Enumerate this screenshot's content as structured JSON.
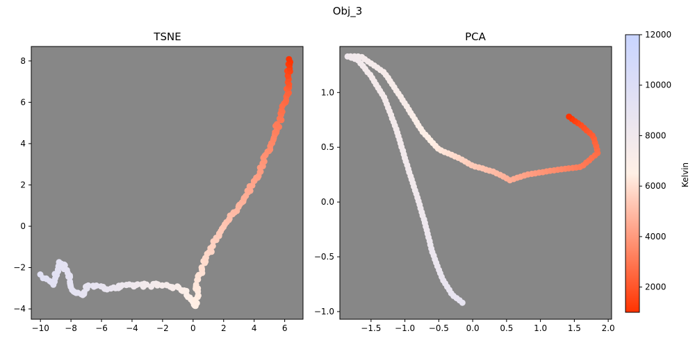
{
  "figure_title": "Obj_3",
  "colormap": {
    "low": "#ff3300",
    "mid": "#fff0e6",
    "high": "#c8d4ff",
    "min": 1000,
    "max": 12000
  },
  "colorbar": {
    "label": "Kelvin",
    "ticks": [
      2000,
      4000,
      6000,
      8000,
      10000,
      12000
    ]
  },
  "chart_data": [
    {
      "type": "scatter",
      "title": "TSNE",
      "xlabel": "",
      "ylabel": "",
      "xlim": [
        -10.6,
        7.2
      ],
      "ylim": [
        -4.5,
        8.7
      ],
      "xticks": [
        -10,
        -8,
        -6,
        -4,
        -2,
        0,
        2,
        4,
        6
      ],
      "yticks": [
        -4,
        -2,
        0,
        2,
        4,
        6,
        8
      ],
      "background": "#878787",
      "line_color": "#4a4a4a",
      "anchors": [
        {
          "x": -9.9,
          "y": -2.4,
          "t": 9500
        },
        {
          "x": -9.2,
          "y": -2.8,
          "t": 9400
        },
        {
          "x": -8.7,
          "y": -1.7,
          "t": 9300
        },
        {
          "x": -8.2,
          "y": -2.2,
          "t": 9200
        },
        {
          "x": -7.9,
          "y": -3.2,
          "t": 9100
        },
        {
          "x": -7.2,
          "y": -3.3,
          "t": 9000
        },
        {
          "x": -6.8,
          "y": -2.8,
          "t": 8900
        },
        {
          "x": -6.0,
          "y": -3.0,
          "t": 8800
        },
        {
          "x": -5.0,
          "y": -2.95,
          "t": 8500
        },
        {
          "x": -3.5,
          "y": -2.85,
          "t": 8000
        },
        {
          "x": -1.8,
          "y": -2.85,
          "t": 7500
        },
        {
          "x": -0.6,
          "y": -3.1,
          "t": 7000
        },
        {
          "x": 0.0,
          "y": -3.7,
          "t": 6700
        },
        {
          "x": 0.2,
          "y": -3.9,
          "t": 6500
        },
        {
          "x": 0.3,
          "y": -2.6,
          "t": 6200
        },
        {
          "x": 1.0,
          "y": -1.3,
          "t": 5800
        },
        {
          "x": 2.0,
          "y": 0.0,
          "t": 5300
        },
        {
          "x": 3.0,
          "y": 1.0,
          "t": 4800
        },
        {
          "x": 4.2,
          "y": 2.4,
          "t": 4200
        },
        {
          "x": 4.7,
          "y": 3.3,
          "t": 3800
        },
        {
          "x": 5.7,
          "y": 5.2,
          "t": 3000
        },
        {
          "x": 6.2,
          "y": 6.5,
          "t": 2400
        },
        {
          "x": 6.3,
          "y": 7.0,
          "t": 2000
        },
        {
          "x": 6.25,
          "y": 8.1,
          "t": 1000
        }
      ]
    },
    {
      "type": "scatter",
      "title": "PCA",
      "xlabel": "",
      "ylabel": "",
      "xlim": [
        -1.96,
        2.05
      ],
      "ylim": [
        -1.07,
        1.42
      ],
      "xticks": [
        -1.5,
        -1.0,
        -0.5,
        0.0,
        0.5,
        1.0,
        1.5,
        2.0
      ],
      "yticks": [
        -1.0,
        -0.5,
        0.0,
        0.5,
        1.0
      ],
      "xticklabels": [
        "−1.5",
        "−1.0",
        "−0.5",
        "0.0",
        "0.5",
        "1.0",
        "1.5",
        "2.0"
      ],
      "yticklabels": [
        "−1.0",
        "−0.5",
        "0.0",
        "0.5",
        "1.0"
      ],
      "background": "#878787",
      "line_color": "#4a4a4a",
      "anchors": [
        {
          "x": -0.15,
          "y": -0.92,
          "t": 8900
        },
        {
          "x": -0.3,
          "y": -0.85,
          "t": 8800
        },
        {
          "x": -0.45,
          "y": -0.7,
          "t": 8600
        },
        {
          "x": -0.6,
          "y": -0.45,
          "t": 8400
        },
        {
          "x": -0.7,
          "y": -0.2,
          "t": 8200
        },
        {
          "x": -0.82,
          "y": 0.05,
          "t": 8000
        },
        {
          "x": -0.95,
          "y": 0.3,
          "t": 7800
        },
        {
          "x": -1.12,
          "y": 0.65,
          "t": 7700
        },
        {
          "x": -1.3,
          "y": 0.95,
          "t": 7600
        },
        {
          "x": -1.5,
          "y": 1.15,
          "t": 7600
        },
        {
          "x": -1.7,
          "y": 1.3,
          "t": 7800
        },
        {
          "x": -1.85,
          "y": 1.33,
          "t": 8000
        },
        {
          "x": -1.65,
          "y": 1.33,
          "t": 7700
        },
        {
          "x": -1.3,
          "y": 1.18,
          "t": 7400
        },
        {
          "x": -1.0,
          "y": 0.9,
          "t": 7200
        },
        {
          "x": -0.75,
          "y": 0.65,
          "t": 6800
        },
        {
          "x": -0.5,
          "y": 0.48,
          "t": 6300
        },
        {
          "x": -0.2,
          "y": 0.4,
          "t": 5800
        },
        {
          "x": 0.0,
          "y": 0.33,
          "t": 5400
        },
        {
          "x": 0.3,
          "y": 0.28,
          "t": 5000
        },
        {
          "x": 0.55,
          "y": 0.2,
          "t": 4600
        },
        {
          "x": 0.8,
          "y": 0.25,
          "t": 4200
        },
        {
          "x": 1.0,
          "y": 0.27,
          "t": 3900
        },
        {
          "x": 1.3,
          "y": 0.3,
          "t": 3500
        },
        {
          "x": 1.6,
          "y": 0.32,
          "t": 3100
        },
        {
          "x": 1.85,
          "y": 0.45,
          "t": 2700
        },
        {
          "x": 1.78,
          "y": 0.6,
          "t": 2300
        },
        {
          "x": 1.6,
          "y": 0.7,
          "t": 1800
        },
        {
          "x": 1.42,
          "y": 0.78,
          "t": 1000
        }
      ]
    }
  ]
}
